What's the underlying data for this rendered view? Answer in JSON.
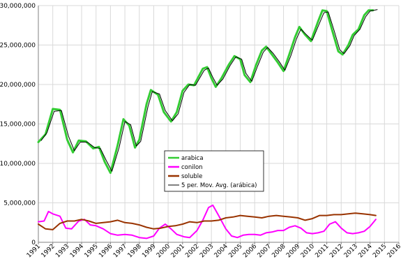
{
  "chart_data": {
    "type": "line",
    "title": "",
    "xlabel": "",
    "ylabel": "",
    "x_tick_labels": [
      "1991",
      "1992",
      "1993",
      "1994",
      "1995",
      "1996",
      "1997",
      "1998",
      "1999",
      "2000",
      "2001",
      "2002",
      "2003",
      "2004",
      "2005",
      "2006",
      "2007",
      "2008",
      "2009",
      "2010",
      "2011",
      "2012",
      "2013",
      "2014",
      "2015",
      "2016"
    ],
    "xlim": [
      1991,
      2016
    ],
    "y_tick_labels": [
      "0",
      "5,000,000",
      "10,000,000",
      "15,000,000",
      "20,000,000",
      "25,000,000",
      "30,000,000"
    ],
    "ylim": [
      0,
      30000000
    ],
    "grid": true,
    "legend_position": "center",
    "legend_items": [
      {
        "label": "arabica",
        "color": "#33cc33"
      },
      {
        "label": "conilon",
        "color": "#ff00ff"
      },
      {
        "label": "soluble",
        "color": "#993300"
      },
      {
        "label": "5 per. Mov. Avg. (arábica)",
        "color": "#000000"
      }
    ],
    "series": [
      {
        "name": "arabica",
        "color": "#33cc33",
        "points": [
          [
            1991,
            12700000
          ],
          [
            1991.5,
            13700000
          ],
          [
            1992,
            16900000
          ],
          [
            1992.5,
            16800000
          ],
          [
            1993,
            13000000
          ],
          [
            1993.4,
            11400000
          ],
          [
            1993.8,
            12900000
          ],
          [
            1994.3,
            12800000
          ],
          [
            1994.8,
            11900000
          ],
          [
            1995.2,
            12100000
          ],
          [
            1995.6,
            10200000
          ],
          [
            1996,
            8800000
          ],
          [
            1996.5,
            12300000
          ],
          [
            1996.9,
            15600000
          ],
          [
            1997.3,
            14800000
          ],
          [
            1997.7,
            12000000
          ],
          [
            1998,
            13000000
          ],
          [
            1998.5,
            17500000
          ],
          [
            1998.8,
            19300000
          ],
          [
            1999.3,
            18700000
          ],
          [
            1999.7,
            16500000
          ],
          [
            2000.2,
            15300000
          ],
          [
            2000.6,
            16500000
          ],
          [
            2001,
            19200000
          ],
          [
            2001.4,
            20000000
          ],
          [
            2001.8,
            19900000
          ],
          [
            2002.4,
            22000000
          ],
          [
            2002.7,
            22200000
          ],
          [
            2003,
            20800000
          ],
          [
            2003.3,
            19700000
          ],
          [
            2003.7,
            20800000
          ],
          [
            2004.2,
            22500000
          ],
          [
            2004.6,
            23600000
          ],
          [
            2005,
            23200000
          ],
          [
            2005.3,
            21200000
          ],
          [
            2005.7,
            20300000
          ],
          [
            2006.1,
            22500000
          ],
          [
            2006.5,
            24300000
          ],
          [
            2006.8,
            24800000
          ],
          [
            2007.2,
            23800000
          ],
          [
            2007.6,
            22800000
          ],
          [
            2008,
            21700000
          ],
          [
            2008.4,
            23800000
          ],
          [
            2008.8,
            26000000
          ],
          [
            2009.1,
            27300000
          ],
          [
            2009.5,
            26300000
          ],
          [
            2009.9,
            25500000
          ],
          [
            2010.4,
            28000000
          ],
          [
            2010.7,
            29400000
          ],
          [
            2011,
            29300000
          ],
          [
            2011.4,
            26700000
          ],
          [
            2011.8,
            24200000
          ],
          [
            2012.1,
            23800000
          ],
          [
            2012.5,
            25000000
          ],
          [
            2012.8,
            26300000
          ],
          [
            2013.2,
            27000000
          ],
          [
            2013.6,
            28800000
          ],
          [
            2013.9,
            29400000
          ],
          [
            2014.2,
            29400000
          ]
        ]
      },
      {
        "name": "conilon",
        "color": "#ff00ff",
        "points": [
          [
            1991,
            2600000
          ],
          [
            1991.4,
            2700000
          ],
          [
            1991.7,
            3900000
          ],
          [
            1992,
            3600000
          ],
          [
            1992.5,
            3300000
          ],
          [
            1992.9,
            1800000
          ],
          [
            1993.3,
            1700000
          ],
          [
            1993.8,
            2700000
          ],
          [
            1994.2,
            2900000
          ],
          [
            1994.6,
            2200000
          ],
          [
            1995,
            2100000
          ],
          [
            1995.5,
            1700000
          ],
          [
            1996,
            1100000
          ],
          [
            1996.5,
            900000
          ],
          [
            1997,
            1000000
          ],
          [
            1997.5,
            900000
          ],
          [
            1998,
            600000
          ],
          [
            1998.5,
            500000
          ],
          [
            1999,
            800000
          ],
          [
            1999.4,
            1800000
          ],
          [
            1999.8,
            2300000
          ],
          [
            2000.2,
            1700000
          ],
          [
            2000.6,
            1000000
          ],
          [
            2001.1,
            700000
          ],
          [
            2001.5,
            600000
          ],
          [
            2002,
            1500000
          ],
          [
            2002.4,
            2800000
          ],
          [
            2002.8,
            4400000
          ],
          [
            2003.1,
            4700000
          ],
          [
            2003.5,
            3400000
          ],
          [
            2004,
            1700000
          ],
          [
            2004.4,
            800000
          ],
          [
            2004.8,
            600000
          ],
          [
            2005.2,
            900000
          ],
          [
            2005.6,
            1000000
          ],
          [
            2006,
            1000000
          ],
          [
            2006.4,
            900000
          ],
          [
            2006.8,
            1200000
          ],
          [
            2007.2,
            1300000
          ],
          [
            2007.6,
            1500000
          ],
          [
            2008,
            1500000
          ],
          [
            2008.4,
            1900000
          ],
          [
            2008.8,
            2100000
          ],
          [
            2009.2,
            1800000
          ],
          [
            2009.6,
            1200000
          ],
          [
            2010,
            1100000
          ],
          [
            2010.4,
            1200000
          ],
          [
            2010.8,
            1400000
          ],
          [
            2011.2,
            2300000
          ],
          [
            2011.6,
            2600000
          ],
          [
            2012,
            1800000
          ],
          [
            2012.4,
            1200000
          ],
          [
            2012.8,
            1100000
          ],
          [
            2013.2,
            1200000
          ],
          [
            2013.6,
            1400000
          ],
          [
            2014,
            2000000
          ],
          [
            2014.4,
            2900000
          ]
        ]
      },
      {
        "name": "soluble",
        "color": "#993300",
        "points": [
          [
            1991,
            2300000
          ],
          [
            1991.5,
            1700000
          ],
          [
            1992,
            1600000
          ],
          [
            1992.5,
            2400000
          ],
          [
            1993,
            2700000
          ],
          [
            1993.5,
            2700000
          ],
          [
            1994,
            2900000
          ],
          [
            1994.5,
            2700000
          ],
          [
            1995,
            2400000
          ],
          [
            1995.5,
            2500000
          ],
          [
            1996,
            2600000
          ],
          [
            1996.5,
            2800000
          ],
          [
            1997,
            2500000
          ],
          [
            1997.5,
            2400000
          ],
          [
            1998,
            2200000
          ],
          [
            1998.5,
            1900000
          ],
          [
            1999,
            1700000
          ],
          [
            1999.5,
            1800000
          ],
          [
            2000,
            2000000
          ],
          [
            2000.5,
            2100000
          ],
          [
            2001,
            2300000
          ],
          [
            2001.5,
            2600000
          ],
          [
            2002,
            2500000
          ],
          [
            2002.5,
            2700000
          ],
          [
            2003,
            2700000
          ],
          [
            2003.5,
            2800000
          ],
          [
            2004,
            3100000
          ],
          [
            2004.5,
            3200000
          ],
          [
            2005,
            3400000
          ],
          [
            2005.5,
            3300000
          ],
          [
            2006,
            3200000
          ],
          [
            2006.5,
            3100000
          ],
          [
            2007,
            3300000
          ],
          [
            2007.5,
            3400000
          ],
          [
            2008,
            3300000
          ],
          [
            2008.5,
            3200000
          ],
          [
            2009,
            3100000
          ],
          [
            2009.5,
            2800000
          ],
          [
            2010,
            3000000
          ],
          [
            2010.5,
            3400000
          ],
          [
            2011,
            3400000
          ],
          [
            2011.5,
            3500000
          ],
          [
            2012,
            3500000
          ],
          [
            2012.5,
            3600000
          ],
          [
            2013,
            3700000
          ],
          [
            2013.5,
            3600000
          ],
          [
            2014,
            3500000
          ],
          [
            2014.4,
            3400000
          ]
        ]
      },
      {
        "name": "5 per. Mov. Avg. (arábica)",
        "color": "#000000",
        "points": [
          [
            1991.2,
            12900000
          ],
          [
            1991.6,
            13900000
          ],
          [
            1992.1,
            16600000
          ],
          [
            1992.6,
            16700000
          ],
          [
            1993.1,
            13400000
          ],
          [
            1993.5,
            11600000
          ],
          [
            1993.9,
            12700000
          ],
          [
            1994.4,
            12700000
          ],
          [
            1994.9,
            12000000
          ],
          [
            1995.3,
            11900000
          ],
          [
            1995.7,
            10400000
          ],
          [
            1996.1,
            9000000
          ],
          [
            1996.6,
            12000000
          ],
          [
            1997,
            15300000
          ],
          [
            1997.4,
            14900000
          ],
          [
            1997.8,
            12200000
          ],
          [
            1998.1,
            12800000
          ],
          [
            1998.6,
            17200000
          ],
          [
            1998.9,
            19100000
          ],
          [
            1999.4,
            18800000
          ],
          [
            1999.8,
            16700000
          ],
          [
            2000.3,
            15400000
          ],
          [
            2000.7,
            16300000
          ],
          [
            2001.1,
            19000000
          ],
          [
            2001.5,
            20000000
          ],
          [
            2001.9,
            19900000
          ],
          [
            2002.5,
            21800000
          ],
          [
            2002.8,
            22100000
          ],
          [
            2003.1,
            20900000
          ],
          [
            2003.4,
            19900000
          ],
          [
            2003.8,
            20700000
          ],
          [
            2004.3,
            22400000
          ],
          [
            2004.7,
            23500000
          ],
          [
            2005.1,
            23200000
          ],
          [
            2005.4,
            21400000
          ],
          [
            2005.8,
            20400000
          ],
          [
            2006.2,
            22300000
          ],
          [
            2006.6,
            24100000
          ],
          [
            2006.9,
            24700000
          ],
          [
            2007.3,
            23900000
          ],
          [
            2007.7,
            22900000
          ],
          [
            2008.1,
            21800000
          ],
          [
            2008.5,
            23600000
          ],
          [
            2008.9,
            25800000
          ],
          [
            2009.2,
            27000000
          ],
          [
            2009.6,
            26300000
          ],
          [
            2010,
            25600000
          ],
          [
            2010.5,
            27800000
          ],
          [
            2010.8,
            29100000
          ],
          [
            2011.1,
            29200000
          ],
          [
            2011.5,
            26900000
          ],
          [
            2011.9,
            24400000
          ],
          [
            2012.2,
            23900000
          ],
          [
            2012.6,
            24900000
          ],
          [
            2012.9,
            26200000
          ],
          [
            2013.3,
            27000000
          ],
          [
            2013.7,
            28600000
          ],
          [
            2014,
            29300000
          ],
          [
            2014.5,
            29500000
          ]
        ]
      }
    ]
  }
}
